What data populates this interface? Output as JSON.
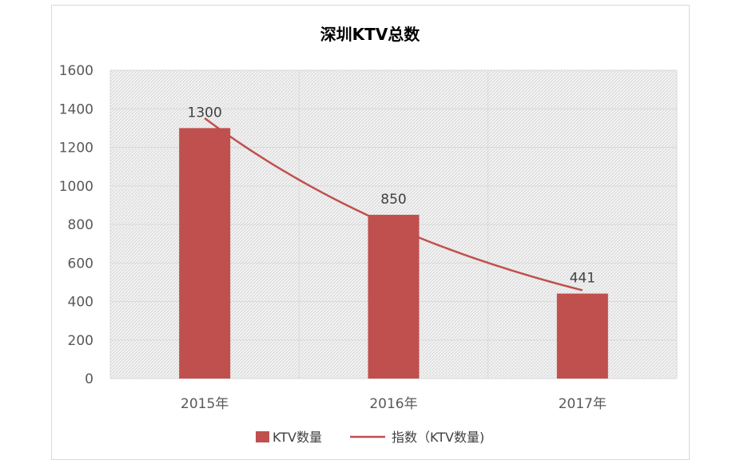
{
  "chart_data": {
    "type": "bar",
    "title": "深圳KTV总数",
    "categories": [
      "2015年",
      "2016年",
      "2017年"
    ],
    "values": [
      1300,
      850,
      441
    ],
    "ylim": [
      0,
      1600
    ],
    "yticks": [
      0,
      200,
      400,
      600,
      800,
      1000,
      1200,
      1400,
      1600
    ],
    "grid": true,
    "legend_position": "bottom",
    "series": [
      {
        "name": "KTV数量",
        "type": "bar",
        "values": [
          1300,
          850,
          441
        ],
        "color": "#c0504d"
      },
      {
        "name": "指数（KTV数量)",
        "type": "trendline-exponential",
        "color": "#c0504d"
      }
    ]
  }
}
